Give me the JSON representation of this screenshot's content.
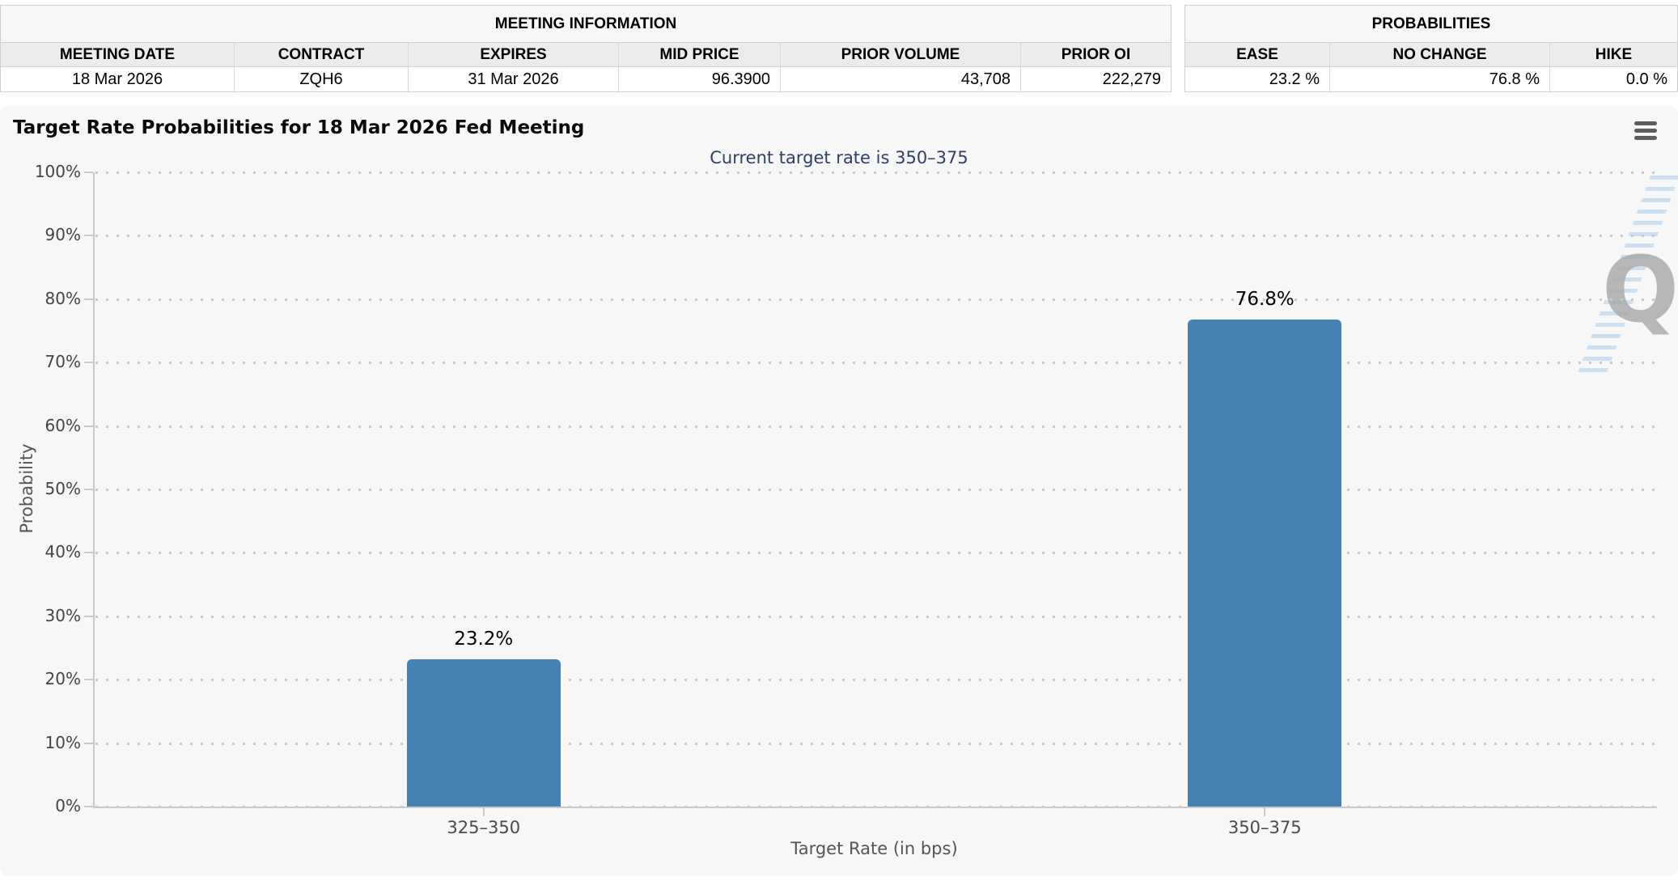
{
  "meeting_info": {
    "section_title": "MEETING INFORMATION",
    "columns": [
      "MEETING DATE",
      "CONTRACT",
      "EXPIRES",
      "MID PRICE",
      "PRIOR VOLUME",
      "PRIOR OI"
    ],
    "row": [
      "18 Mar 2026",
      "ZQH6",
      "31 Mar 2026",
      "96.3900",
      "43,708",
      "222,279"
    ]
  },
  "probabilities": {
    "section_title": "PROBABILITIES",
    "columns": [
      "EASE",
      "NO CHANGE",
      "HIKE"
    ],
    "row": [
      "23.2 %",
      "76.8 %",
      "0.0 %"
    ]
  },
  "chart_data": {
    "type": "bar",
    "title": "Target Rate Probabilities for 18 Mar 2026 Fed Meeting",
    "subtitle": "Current target rate is 350–375",
    "categories": [
      "325–350",
      "350–375"
    ],
    "values": [
      23.2,
      76.8
    ],
    "data_labels": [
      "23.2%",
      "76.8%"
    ],
    "xlabel": "Target Rate (in bps)",
    "ylabel": "Probability",
    "ylim": [
      0,
      100
    ],
    "ytick_step": 10,
    "ytick_suffix": "%",
    "grid": "dotted-horizontal",
    "legend": "none",
    "bar_color": "#4681b4",
    "watermark_letter": "Q"
  },
  "icons": {
    "chart_menu": "hamburger-menu-icon"
  },
  "colors": {
    "chart_background": "#f7f7f7",
    "subtitle_text": "#2e3d6b",
    "bar": "#4681b4",
    "axis_line": "#c9c9c9",
    "header_row_bg": "#ececec"
  }
}
